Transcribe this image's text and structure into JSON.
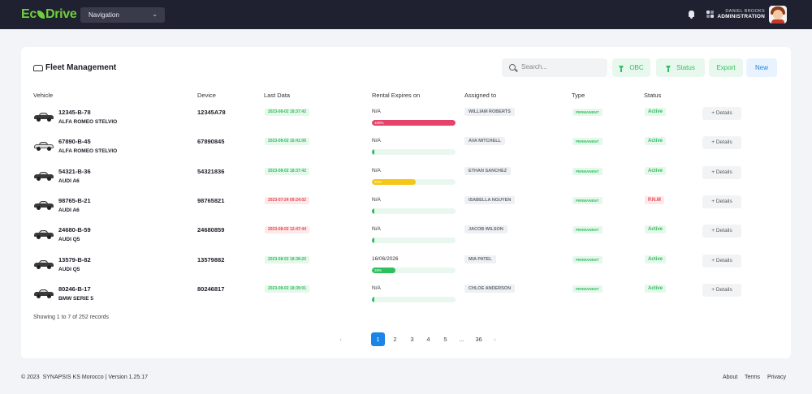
{
  "app": {
    "logo_left": "Ec",
    "logo_right": "Drive"
  },
  "header": {
    "nav_select": "Navigation",
    "user_name": "DANIEL BROOKS",
    "user_role": "ADMINISTRATION"
  },
  "page": {
    "title": "Fleet Management",
    "search_placeholder": "Search...",
    "obc_label": "OBC",
    "status_label": "Status",
    "export_label": "Export",
    "new_label": "New"
  },
  "table": {
    "columns": [
      "Vehicle",
      "Device",
      "Last Data",
      "Rental Expires on",
      "Assigned to",
      "Type",
      "Status"
    ],
    "details_label": "+ Details",
    "rows": [
      {
        "plate": "12345-B-78",
        "model": "ALFA ROMEO STELVIO",
        "device": "12345A78",
        "last_data": "2023-08-02 18:37:42",
        "last_ok": true,
        "rental": "N/A",
        "progress_label": "100%",
        "progress": 1.0,
        "bar_color": "#e5436a",
        "assigned": "WILLIAM ROBERTS",
        "type": "PERMANENT",
        "status": "Active",
        "status_ok": true
      },
      {
        "plate": "67890-B-45",
        "model": "ALFA ROMEO STELVIO",
        "device": "67890845",
        "last_data": "2023-08-02 16:41:06",
        "last_ok": true,
        "rental": "N/A",
        "progress_label": "",
        "progress": 0,
        "bar_color": "#2fbf5c",
        "assigned": "AVA MITCHELL",
        "type": "PERMANENT",
        "status": "Active",
        "status_ok": true
      },
      {
        "plate": "54321-B-36",
        "model": "AUDI A6",
        "device": "54321836",
        "last_data": "2023-08-02 18:37:42",
        "last_ok": true,
        "rental": "N/A",
        "progress_label": "52%",
        "progress": 0.52,
        "bar_color": "#f5c518",
        "assigned": "ETHAN SANCHEZ",
        "type": "PERMANENT",
        "status": "Active",
        "status_ok": true
      },
      {
        "plate": "98765-B-21",
        "model": "AUDI A6",
        "device": "98765821",
        "last_data": "2023-07-24 09:24:02",
        "last_ok": false,
        "rental": "N/A",
        "progress_label": "",
        "progress": 0,
        "bar_color": "#2fbf5c",
        "assigned": "ISABELLA NGUYEN",
        "type": "PERMANENT",
        "status": "P.N.M",
        "status_ok": false
      },
      {
        "plate": "24680-B-59",
        "model": "AUDI Q5",
        "device": "24680859",
        "last_data": "2023-08-02 12:47:44",
        "last_ok": false,
        "rental": "N/A",
        "progress_label": "",
        "progress": 0,
        "bar_color": "#2fbf5c",
        "assigned": "JACOB WILSON",
        "type": "PERMANENT",
        "status": "Active",
        "status_ok": true
      },
      {
        "plate": "13579-B-82",
        "model": "AUDI Q5",
        "device": "13579882",
        "last_data": "2023-08-02 18:38:20",
        "last_ok": true,
        "rental": "16/06/2026",
        "progress_label": "28%",
        "progress": 0.28,
        "bar_color": "#2fbf5c",
        "assigned": "MIA PATEL",
        "type": "PERMANENT",
        "status": "Active",
        "status_ok": true
      },
      {
        "plate": "80246-B-17",
        "model": "BMW SERIE 5",
        "device": "80246817",
        "last_data": "2023-08-02 18:39:01",
        "last_ok": true,
        "rental": "N/A",
        "progress_label": "",
        "progress": 0,
        "bar_color": "#2fbf5c",
        "assigned": "CHLOE ANDERSON",
        "type": "PERMANENT",
        "status": "Active",
        "status_ok": true
      }
    ]
  },
  "pagination": {
    "summary": "Showing 1 to 7 of 252 records",
    "prev": "‹",
    "next": "›",
    "pages": [
      "1",
      "2",
      "3",
      "4",
      "5",
      "...",
      "36"
    ],
    "active": "1"
  },
  "footer": {
    "copyright": "© 2023",
    "company": "SYNAPSIS KS Morocco | Version 1.25.17",
    "links": [
      "About",
      "Terms",
      "Privacy"
    ]
  }
}
